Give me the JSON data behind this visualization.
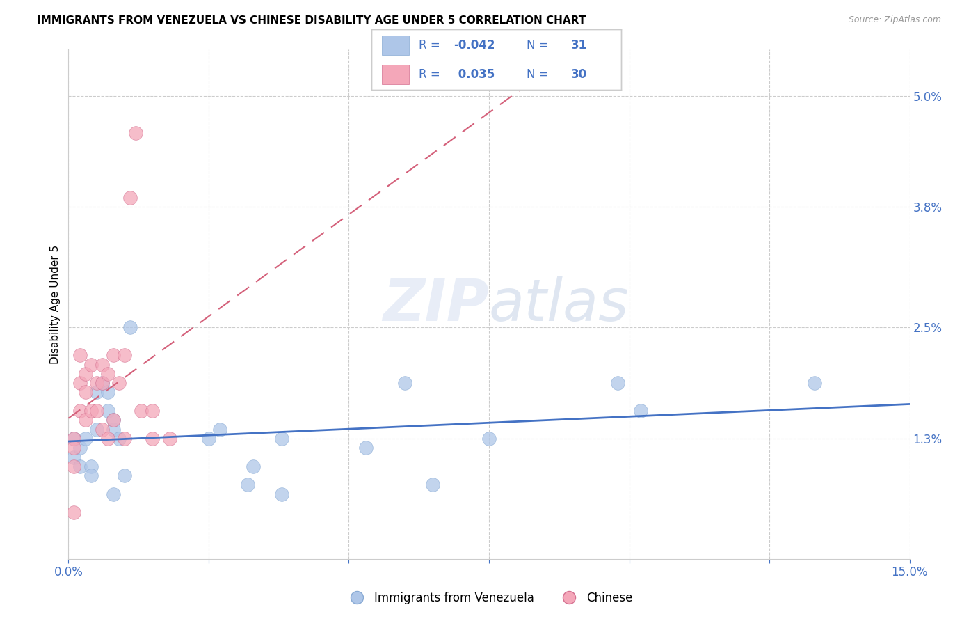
{
  "title": "IMMIGRANTS FROM VENEZUELA VS CHINESE DISABILITY AGE UNDER 5 CORRELATION CHART",
  "source": "Source: ZipAtlas.com",
  "ylabel": "Disability Age Under 5",
  "xlim": [
    0.0,
    0.15
  ],
  "ylim": [
    0.0,
    0.055
  ],
  "yticks": [
    0.013,
    0.025,
    0.038,
    0.05
  ],
  "ytick_labels": [
    "1.3%",
    "2.5%",
    "3.8%",
    "5.0%"
  ],
  "xticks": [
    0.0,
    0.025,
    0.05,
    0.075,
    0.1,
    0.125,
    0.15
  ],
  "xtick_labels": [
    "0.0%",
    "",
    "",
    "",
    "",
    "",
    "15.0%"
  ],
  "watermark_zip": "ZIP",
  "watermark_atlas": "atlas",
  "legend_label_blue": "Immigrants from Venezuela",
  "legend_label_pink": "Chinese",
  "venezuela_color": "#aec6e8",
  "chinese_color": "#f4a7b9",
  "venezuela_line_color": "#4472c4",
  "chinese_line_color": "#d4607a",
  "venezuela_R": -0.042,
  "chinese_R": 0.035,
  "venezuela_N": 31,
  "chinese_N": 30,
  "venezuela_x": [
    0.001,
    0.001,
    0.002,
    0.002,
    0.003,
    0.004,
    0.004,
    0.005,
    0.005,
    0.006,
    0.007,
    0.007,
    0.008,
    0.008,
    0.008,
    0.009,
    0.01,
    0.011,
    0.025,
    0.027,
    0.032,
    0.033,
    0.038,
    0.038,
    0.053,
    0.06,
    0.065,
    0.075,
    0.098,
    0.102,
    0.133
  ],
  "venezuela_y": [
    0.013,
    0.011,
    0.012,
    0.01,
    0.013,
    0.01,
    0.009,
    0.018,
    0.014,
    0.019,
    0.016,
    0.018,
    0.014,
    0.015,
    0.007,
    0.013,
    0.009,
    0.025,
    0.013,
    0.014,
    0.008,
    0.01,
    0.013,
    0.007,
    0.012,
    0.019,
    0.008,
    0.013,
    0.019,
    0.016,
    0.019
  ],
  "chinese_x": [
    0.001,
    0.001,
    0.001,
    0.001,
    0.002,
    0.002,
    0.002,
    0.003,
    0.003,
    0.003,
    0.004,
    0.004,
    0.005,
    0.005,
    0.006,
    0.006,
    0.006,
    0.007,
    0.007,
    0.008,
    0.008,
    0.009,
    0.01,
    0.01,
    0.011,
    0.012,
    0.013,
    0.015,
    0.015,
    0.018
  ],
  "chinese_y": [
    0.013,
    0.012,
    0.01,
    0.005,
    0.022,
    0.019,
    0.016,
    0.02,
    0.018,
    0.015,
    0.021,
    0.016,
    0.019,
    0.016,
    0.021,
    0.019,
    0.014,
    0.02,
    0.013,
    0.022,
    0.015,
    0.019,
    0.022,
    0.013,
    0.039,
    0.046,
    0.016,
    0.016,
    0.013,
    0.013
  ],
  "title_fontsize": 11,
  "axis_color": "#4472c4",
  "grid_color": "#cccccc",
  "legend_text_color": "#4472c4"
}
